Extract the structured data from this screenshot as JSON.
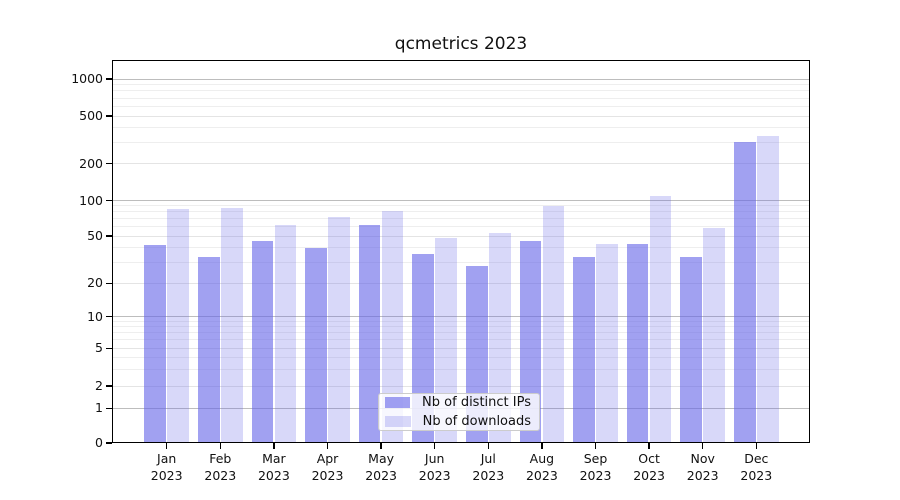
{
  "figure": {
    "background": "#ffffff"
  },
  "chart_data": {
    "type": "bar",
    "title": "qcmetrics 2023",
    "categories": [
      "Jan",
      "Feb",
      "Mar",
      "Apr",
      "May",
      "Jun",
      "Jul",
      "Aug",
      "Sep",
      "Oct",
      "Nov",
      "Dec"
    ],
    "x_tick_year": "2023",
    "series": [
      {
        "name": "Nb of distinct IPs",
        "color": "#a1a1f1",
        "values": [
          42,
          33,
          45,
          40,
          62,
          35,
          28,
          45,
          33,
          43,
          33,
          303
        ]
      },
      {
        "name": "Nb of downloads",
        "color": "#d8d8f9",
        "values": [
          84,
          86,
          62,
          72,
          81,
          48,
          53,
          89,
          43,
          109,
          58,
          340
        ]
      }
    ],
    "xlabel": "",
    "ylabel": "",
    "yscale": "symlog",
    "y_ticks": [
      0,
      1,
      2,
      5,
      10,
      20,
      50,
      100,
      200,
      500,
      1000
    ],
    "ylim": [
      0,
      1400
    ],
    "grid": true,
    "legend_position": "lower center"
  }
}
